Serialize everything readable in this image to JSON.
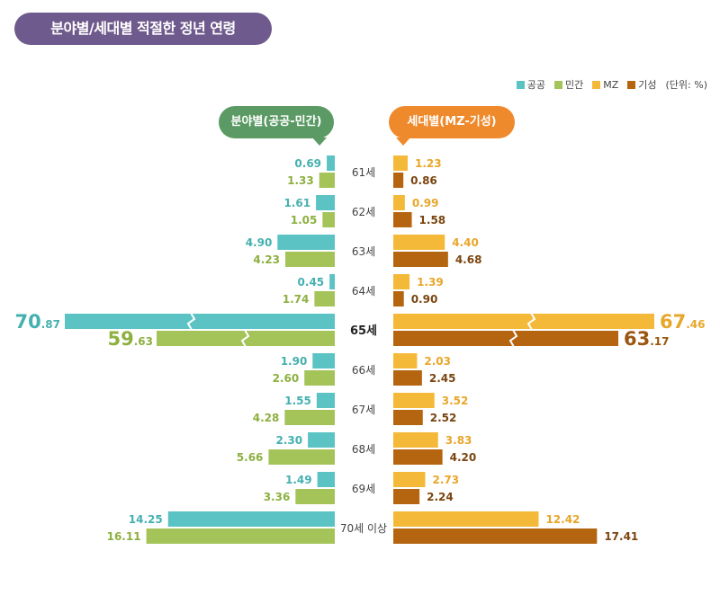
{
  "title": "분야별/세대별 적절한 정년 연령",
  "legend": [
    {
      "label": "공공",
      "color": "#5bc3c3"
    },
    {
      "label": "민간",
      "color": "#a4c45a"
    },
    {
      "label": "MZ",
      "color": "#f5b93a"
    },
    {
      "label": "기성",
      "color": "#b5650f"
    }
  ],
  "unit_note": "(단위: %)",
  "left_header": "분야별(공공-민간)",
  "right_header": "세대별(MZ-기성)",
  "chart_data": {
    "type": "bar",
    "categories": [
      "61세",
      "62세",
      "63세",
      "64세",
      "65세",
      "66세",
      "67세",
      "68세",
      "69세",
      "70세 이상"
    ],
    "series": [
      {
        "name": "공공",
        "side": "left",
        "color": "#5bc3c3",
        "values": [
          0.69,
          1.61,
          4.9,
          0.45,
          70.87,
          1.9,
          1.55,
          2.3,
          1.49,
          14.25
        ]
      },
      {
        "name": "민간",
        "side": "left",
        "color": "#a4c45a",
        "values": [
          1.33,
          1.05,
          4.23,
          1.74,
          59.63,
          2.6,
          4.28,
          5.66,
          3.36,
          16.11
        ]
      },
      {
        "name": "MZ",
        "side": "right",
        "color": "#f5b93a",
        "values": [
          1.23,
          0.99,
          4.4,
          1.39,
          67.46,
          2.03,
          3.52,
          3.83,
          2.73,
          12.42
        ]
      },
      {
        "name": "기성",
        "side": "right",
        "color": "#b5650f",
        "values": [
          0.86,
          1.58,
          4.68,
          0.9,
          63.17,
          2.45,
          2.52,
          4.2,
          2.24,
          17.41
        ]
      }
    ],
    "labels": [
      [
        "0.69",
        "1.61",
        "4.90",
        "0.45",
        "70.87",
        "1.90",
        "1.55",
        "2.30",
        "1.49",
        "14.25"
      ],
      [
        "1.33",
        "1.05",
        "4.23",
        "1.74",
        "59.63",
        "2.60",
        "4.28",
        "5.66",
        "3.36",
        "16.11"
      ],
      [
        "1.23",
        "0.99",
        "4.40",
        "1.39",
        "67.46",
        "2.03",
        "3.52",
        "3.83",
        "2.73",
        "12.42"
      ],
      [
        "0.86",
        "1.58",
        "4.68",
        "0.90",
        "63.17",
        "2.45",
        "2.52",
        "4.20",
        "2.24",
        "17.41"
      ]
    ],
    "highlight_category": "65세",
    "axis_break_category": "65세"
  }
}
